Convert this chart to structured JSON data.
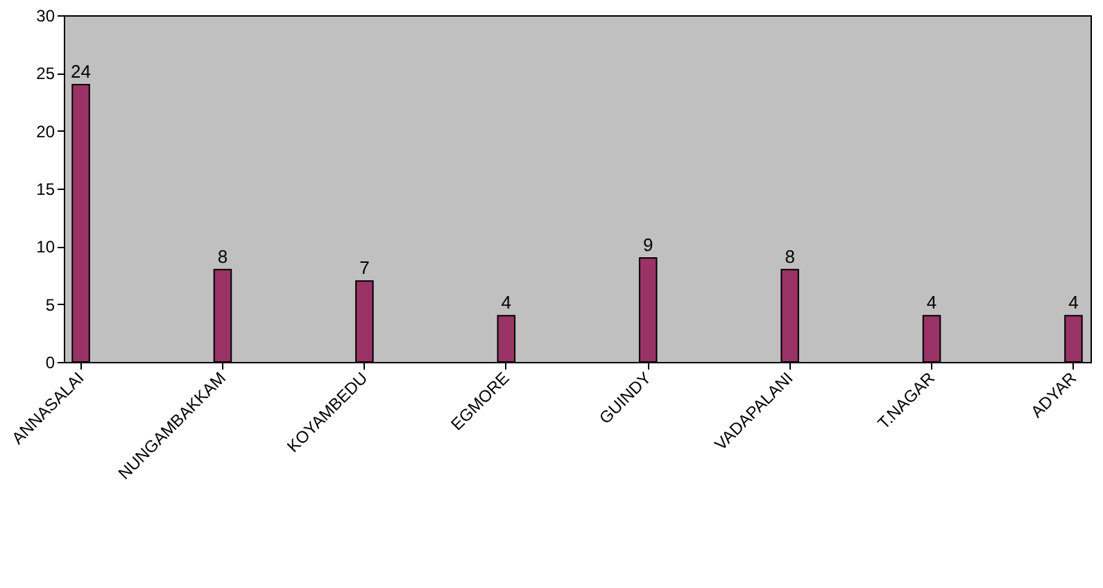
{
  "chart_data": {
    "type": "bar",
    "categories": [
      "ANNASALAI",
      "NUNGAMBAKKAM",
      "KOYAMBEDU",
      "EGMORE",
      "GUINDY",
      "VADAPALANI",
      "T.NAGAR",
      "ADYAR"
    ],
    "values": [
      24,
      8,
      7,
      4,
      9,
      8,
      4,
      4
    ],
    "color": "#993366",
    "ylim": [
      0,
      30
    ],
    "yticks": [
      0,
      5,
      10,
      15,
      20,
      25,
      30
    ],
    "data_labels": true
  }
}
